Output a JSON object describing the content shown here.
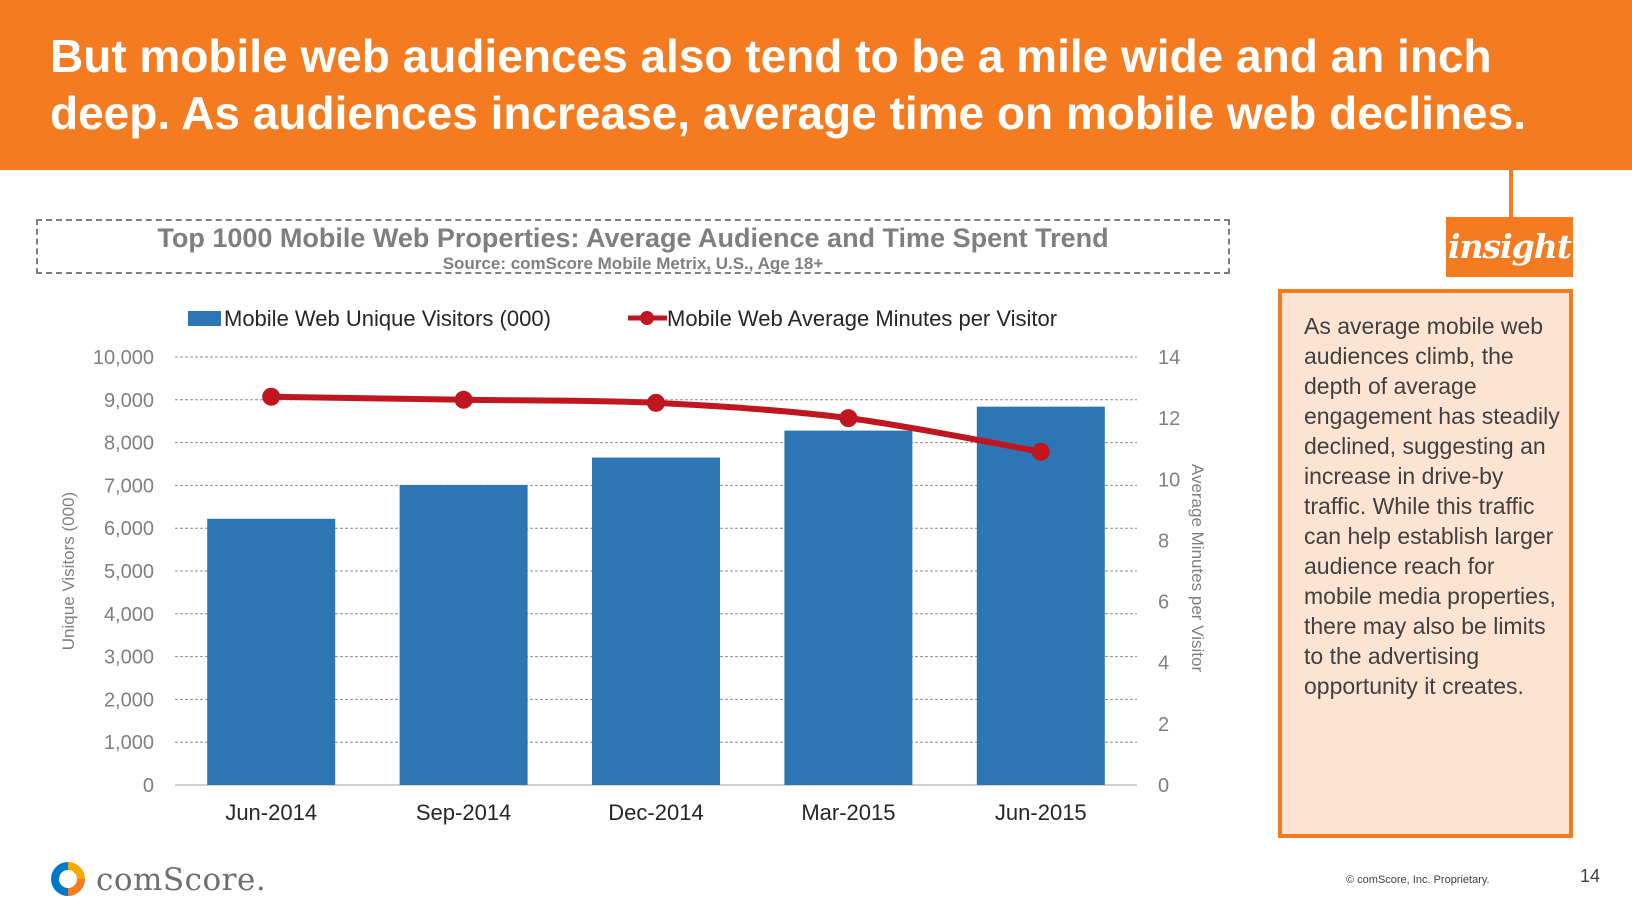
{
  "header": {
    "title": "But mobile web audiences also tend to be a mile wide and an inch deep. As audiences increase, average time on mobile web declines."
  },
  "chart_data": {
    "type": "bar+line",
    "title": "Top 1000 Mobile Web Properties: Average Audience and Time Spent Trend",
    "subtitle": "Source: comScore Mobile Metrix, U.S., Age 18+",
    "categories": [
      "Jun-2014",
      "Sep-2014",
      "Dec-2014",
      "Mar-2015",
      "Jun-2015"
    ],
    "series": [
      {
        "name": "Mobile Web Unique Visitors (000)",
        "type": "bar",
        "axis": "left",
        "color": "#2e75b6",
        "values": [
          6220,
          7010,
          7650,
          8280,
          8840
        ]
      },
      {
        "name": "Mobile Web Average Minutes per Visitor",
        "type": "line",
        "axis": "right",
        "color": "#c0161f",
        "values": [
          12.7,
          12.6,
          12.5,
          12.0,
          10.9
        ]
      }
    ],
    "ylabel": "Unique Visitors (000)",
    "y2label": "Average Minutes per Visitor",
    "ylim": [
      0,
      10000
    ],
    "y2lim": [
      0,
      14
    ],
    "yticks": [
      "0",
      "1,000",
      "2,000",
      "3,000",
      "4,000",
      "5,000",
      "6,000",
      "7,000",
      "8,000",
      "9,000",
      "10,000"
    ],
    "y2ticks": [
      "0",
      "2",
      "4",
      "6",
      "8",
      "10",
      "12",
      "14"
    ],
    "grid": true,
    "legend": "top"
  },
  "insight": {
    "badge": "insight",
    "text": "As average mobile web audiences climb, the depth of average engagement has steadily declined, suggesting an increase in drive-by traffic. While this traffic can help establish larger audience reach for mobile media properties, there may also be limits to the advertising opportunity it creates."
  },
  "footer": {
    "logo_text": "comScore.",
    "copyright": "© comScore, Inc. Proprietary.",
    "page_number": "14"
  },
  "colors": {
    "header_bg": "#f47b20",
    "bar": "#2e75b6",
    "line": "#c0161f",
    "panel_bg": "#fde3d2"
  }
}
